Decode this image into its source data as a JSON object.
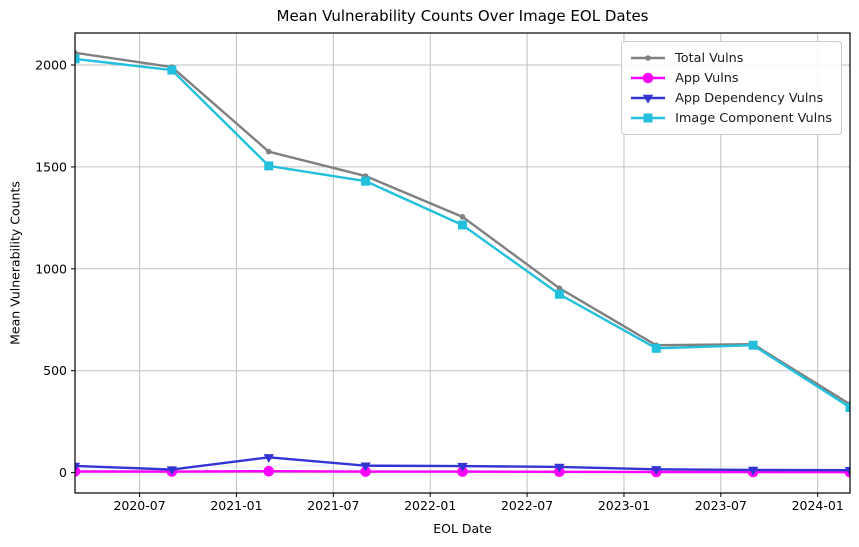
{
  "chart_data": {
    "type": "line",
    "title": "Mean Vulnerability Counts Over Image EOL Dates",
    "xlabel": "EOL Date",
    "ylabel": "Mean Vulnerability Counts",
    "x": [
      "2020-03",
      "2020-09",
      "2021-03",
      "2021-09",
      "2022-03",
      "2022-09",
      "2023-03",
      "2023-09",
      "2024-03"
    ],
    "x_tick_labels": [
      "2020-07",
      "2021-01",
      "2021-07",
      "2022-01",
      "2022-07",
      "2023-01",
      "2023-07",
      "2024-01"
    ],
    "y_ticks": [
      0,
      500,
      1000,
      1500,
      2000
    ],
    "ylim": [
      -100,
      2157
    ],
    "grid": true,
    "legend_position": "upper right",
    "grid_color": "#c0c0c0",
    "series": [
      {
        "name": "Total Vulns",
        "color": "#808080",
        "marker": "circle-small",
        "values": [
          2060,
          1990,
          1575,
          1455,
          1255,
          905,
          625,
          630,
          335
        ]
      },
      {
        "name": "App Vulns",
        "color": "#ff00ff",
        "marker": "circle",
        "values": [
          6,
          5,
          7,
          5,
          5,
          4,
          3,
          3,
          2
        ]
      },
      {
        "name": "App Dependency Vulns",
        "color": "#3434d4",
        "marker": "triangle-down",
        "values": [
          33,
          15,
          75,
          34,
          32,
          28,
          16,
          13,
          12
        ]
      },
      {
        "name": "Image Component Vulns",
        "color": "#22c0dc",
        "marker": "square",
        "values": [
          2030,
          1975,
          1505,
          1430,
          1215,
          875,
          610,
          625,
          320
        ]
      }
    ]
  }
}
